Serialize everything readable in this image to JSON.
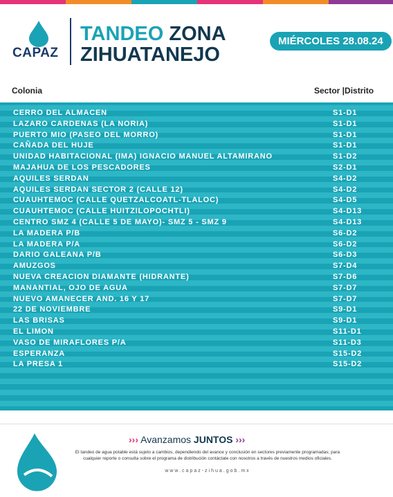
{
  "header": {
    "logo": "CAPAZ",
    "title_a": "TANDEO",
    "title_b": "ZONA",
    "title_c": "ZIHUATANEJO",
    "date": "MIÉRCOLES 28.08.24"
  },
  "table": {
    "columns": [
      "Colonia",
      "Sector |Distrito"
    ],
    "rows": [
      [
        "CERRO DEL ALMACEN",
        "S1-D1"
      ],
      [
        "LAZARO CARDENAS (LA NORIA)",
        "S1-D1"
      ],
      [
        "PUERTO MIO (PASEO DEL MORRO)",
        "S1-D1"
      ],
      [
        "CAÑADA DEL HUJE",
        "S1-D1"
      ],
      [
        "UNIDAD HABITACIONAL (IMA) IGNACIO MANUEL ALTAMIRANO",
        "S1-D2"
      ],
      [
        "MAJAHUA DE LOS PESCADORES",
        "S2-D1"
      ],
      [
        "AQUILES SERDAN",
        "S4-D2"
      ],
      [
        "AQUILES SERDAN SECTOR 2 (CALLE 12)",
        "S4-D2"
      ],
      [
        "CUAUHTEMOC (CALLE QUETZALCOATL-TLALOC)",
        "S4-D5"
      ],
      [
        "CUAUHTEMOC (CALLE HUITZILOPOCHTLI)",
        "S4-D13"
      ],
      [
        "CENTRO SMZ 4 (CALLE 5 DE MAYO)- SMZ 5 - SMZ 9",
        "S4-D13"
      ],
      [
        "LA MADERA P/B",
        "S6-D2"
      ],
      [
        "LA MADERA P/A",
        "S6-D2"
      ],
      [
        "DARIO GALEANA P/B",
        "S6-D3"
      ],
      [
        "AMUZGOS",
        "S7-D4"
      ],
      [
        "NUEVA CREACION DIAMANTE (HIDRANTE)",
        "S7-D6"
      ],
      [
        "MANANTIAL, OJO DE AGUA",
        "S7-D7"
      ],
      [
        "NUEVO AMANECER AND. 16 Y 17",
        "S7-D7"
      ],
      [
        "22 DE NOVIEMBRE",
        "S9-D1"
      ],
      [
        "LAS BRISAS",
        "S9-D1"
      ],
      [
        "EL LIMON",
        "S11-D1"
      ],
      [
        "VASO DE MIRAFLORES P/A",
        "S11-D3"
      ],
      [
        "ESPERANZA",
        "S15-D2"
      ],
      [
        "LA PRESA 1",
        "S15-D2"
      ]
    ]
  },
  "footer": {
    "slogan_a": "Avanzamos",
    "slogan_b": "JUNTOS",
    "note": "El tandeo de agua potable está sujeto a cambios, dependiendo del avance y conclusión en sectores previamente programadas; para cualquier reporte o consulta sobre el programa de distribución contáctate con nosotros a través de nuestros medios oficiales.",
    "website": "www.capaz-zihua.gob.mx"
  }
}
